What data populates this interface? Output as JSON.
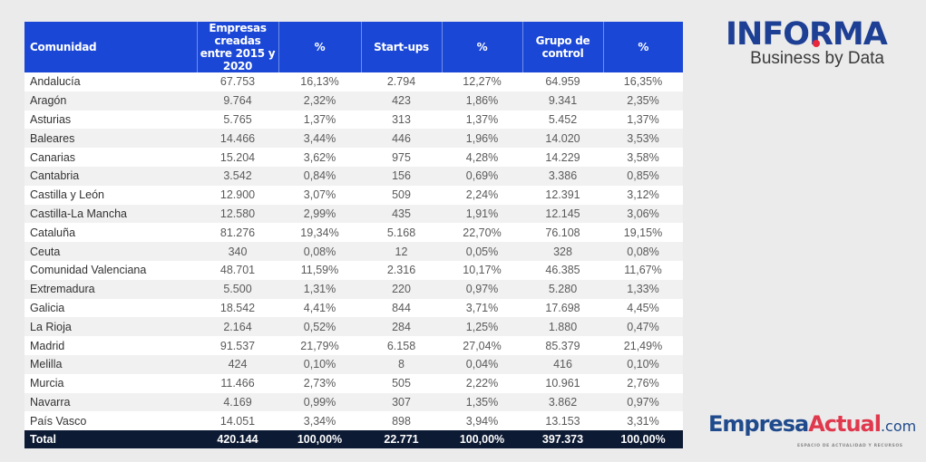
{
  "table": {
    "headers": [
      "Comunidad",
      "Empresas creadas entre 2015 y 2020",
      "%",
      "Start-ups",
      "%",
      "Grupo de control",
      "%"
    ],
    "rows": [
      [
        "Andalucía",
        "67.753",
        "16,13%",
        "2.794",
        "12,27%",
        "64.959",
        "16,35%"
      ],
      [
        "Aragón",
        "9.764",
        "2,32%",
        "423",
        "1,86%",
        "9.341",
        "2,35%"
      ],
      [
        "Asturias",
        "5.765",
        "1,37%",
        "313",
        "1,37%",
        "5.452",
        "1,37%"
      ],
      [
        "Baleares",
        "14.466",
        "3,44%",
        "446",
        "1,96%",
        "14.020",
        "3,53%"
      ],
      [
        "Canarias",
        "15.204",
        "3,62%",
        "975",
        "4,28%",
        "14.229",
        "3,58%"
      ],
      [
        "Cantabria",
        "3.542",
        "0,84%",
        "156",
        "0,69%",
        "3.386",
        "0,85%"
      ],
      [
        "Castilla y León",
        "12.900",
        "3,07%",
        "509",
        "2,24%",
        "12.391",
        "3,12%"
      ],
      [
        "Castilla-La Mancha",
        "12.580",
        "2,99%",
        "435",
        "1,91%",
        "12.145",
        "3,06%"
      ],
      [
        "Cataluña",
        "81.276",
        "19,34%",
        "5.168",
        "22,70%",
        "76.108",
        "19,15%"
      ],
      [
        "Ceuta",
        "340",
        "0,08%",
        "12",
        "0,05%",
        "328",
        "0,08%"
      ],
      [
        "Comunidad Valenciana",
        "48.701",
        "11,59%",
        "2.316",
        "10,17%",
        "46.385",
        "11,67%"
      ],
      [
        "Extremadura",
        "5.500",
        "1,31%",
        "220",
        "0,97%",
        "5.280",
        "1,33%"
      ],
      [
        "Galicia",
        "18.542",
        "4,41%",
        "844",
        "3,71%",
        "17.698",
        "4,45%"
      ],
      [
        "La Rioja",
        "2.164",
        "0,52%",
        "284",
        "1,25%",
        "1.880",
        "0,47%"
      ],
      [
        "Madrid",
        "91.537",
        "21,79%",
        "6.158",
        "27,04%",
        "85.379",
        "21,49%"
      ],
      [
        "Melilla",
        "424",
        "0,10%",
        "8",
        "0,04%",
        "416",
        "0,10%"
      ],
      [
        "Murcia",
        "11.466",
        "2,73%",
        "505",
        "2,22%",
        "10.961",
        "2,76%"
      ],
      [
        "Navarra",
        "4.169",
        "0,99%",
        "307",
        "1,35%",
        "3.862",
        "0,97%"
      ],
      [
        "País Vasco",
        "14.051",
        "3,34%",
        "898",
        "3,94%",
        "13.153",
        "3,31%"
      ]
    ],
    "total": [
      "Total",
      "420.144",
      "100,00%",
      "22.771",
      "100,00%",
      "397.373",
      "100,00%"
    ]
  },
  "logos": {
    "informa": {
      "name": "INFORMA",
      "tagline": "Business by Data"
    },
    "empresa_actual": {
      "part1": "Empresa",
      "part2": "Actual",
      "part3": ".com",
      "tagline": "ESPACIO DE ACTUALIDAD Y RECURSOS"
    }
  },
  "colors": {
    "header": "#1a47d6",
    "total_row": "#0c1a33",
    "accent_red": "#e8283c",
    "brand_blue": "#1d3f94"
  }
}
